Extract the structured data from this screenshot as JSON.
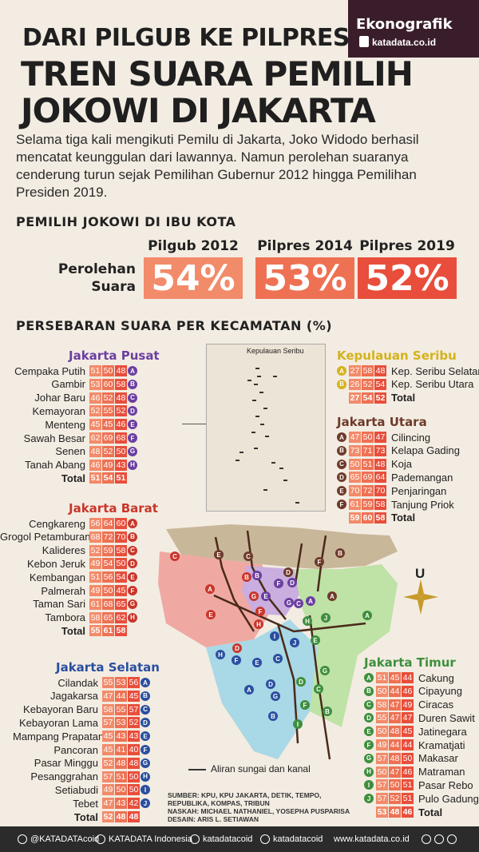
{
  "brand": {
    "title": "Ekonografik",
    "sub": "katadata.co.id"
  },
  "title_small": "DARI PILGUB KE PILPRES",
  "title_big_1": "TREN SUARA PEMILIH",
  "title_big_2": "JOKOWI DI JAKARTA",
  "intro": "Selama tiga kali mengikuti Pemilu di Jakarta, Joko Widodo berhasil mencatat keunggulan dari lawannya. Namun perolehan suaranya cenderung turun sejak Pemilihan Gubernur 2012 hingga Pemilihan Presiden 2019.",
  "section1": "PEMILIH JOKOWI DI IBU KOTA",
  "perolehan_1": "Perolehan",
  "perolehan_2": "Suara",
  "elections": [
    {
      "name": "Pilgub 2012",
      "value": "54%",
      "color": "#f28b6a"
    },
    {
      "name": "Pilpres 2014",
      "value": "53%",
      "color": "#ee7153"
    },
    {
      "name": "Pilpres 2019",
      "value": "52%",
      "color": "#e84e3b"
    }
  ],
  "section2": "PERSEBARAN SUARA PER KECAMATAN (%)",
  "total_label": "Total",
  "regions": {
    "pusat": {
      "name": "Jakarta Pusat",
      "color": "#6b3fa0",
      "rows": [
        {
          "n": "Cempaka Putih",
          "v": [
            "51",
            "50",
            "48"
          ],
          "k": "A"
        },
        {
          "n": "Gambir",
          "v": [
            "53",
            "60",
            "58"
          ],
          "k": "B"
        },
        {
          "n": "Johar Baru",
          "v": [
            "46",
            "52",
            "48"
          ],
          "k": "C"
        },
        {
          "n": "Kemayoran",
          "v": [
            "52",
            "55",
            "52"
          ],
          "k": "D"
        },
        {
          "n": "Menteng",
          "v": [
            "45",
            "45",
            "46"
          ],
          "k": "E"
        },
        {
          "n": "Sawah Besar",
          "v": [
            "62",
            "69",
            "68"
          ],
          "k": "F"
        },
        {
          "n": "Senen",
          "v": [
            "48",
            "52",
            "50"
          ],
          "k": "G"
        },
        {
          "n": "Tanah Abang",
          "v": [
            "46",
            "49",
            "43"
          ],
          "k": "H"
        }
      ],
      "total": [
        "51",
        "54",
        "51"
      ]
    },
    "barat": {
      "name": "Jakarta Barat",
      "color": "#c9362b",
      "rows": [
        {
          "n": "Cengkareng",
          "v": [
            "56",
            "64",
            "60"
          ],
          "k": "A"
        },
        {
          "n": "Grogol Petamburan",
          "v": [
            "68",
            "72",
            "70"
          ],
          "k": "B"
        },
        {
          "n": "Kalideres",
          "v": [
            "52",
            "59",
            "58"
          ],
          "k": "C"
        },
        {
          "n": "Kebon Jeruk",
          "v": [
            "49",
            "54",
            "50"
          ],
          "k": "D"
        },
        {
          "n": "Kembangan",
          "v": [
            "51",
            "56",
            "54"
          ],
          "k": "E"
        },
        {
          "n": "Palmerah",
          "v": [
            "49",
            "50",
            "45"
          ],
          "k": "F"
        },
        {
          "n": "Taman Sari",
          "v": [
            "61",
            "68",
            "65"
          ],
          "k": "G"
        },
        {
          "n": "Tambora",
          "v": [
            "58",
            "65",
            "62"
          ],
          "k": "H"
        }
      ],
      "total": [
        "55",
        "61",
        "58"
      ]
    },
    "selatan": {
      "name": "Jakarta Selatan",
      "color": "#2a4fa0",
      "rows": [
        {
          "n": "Cilandak",
          "v": [
            "55",
            "53",
            "56"
          ],
          "k": "A"
        },
        {
          "n": "Jagakarsa",
          "v": [
            "47",
            "44",
            "45"
          ],
          "k": "B"
        },
        {
          "n": "Kebayoran Baru",
          "v": [
            "58",
            "55",
            "57"
          ],
          "k": "C"
        },
        {
          "n": "Kebayoran Lama",
          "v": [
            "57",
            "53",
            "52"
          ],
          "k": "D"
        },
        {
          "n": "Mampang Prapatan",
          "v": [
            "45",
            "43",
            "43"
          ],
          "k": "E"
        },
        {
          "n": "Pancoran",
          "v": [
            "45",
            "41",
            "40"
          ],
          "k": "F"
        },
        {
          "n": "Pasar Minggu",
          "v": [
            "52",
            "48",
            "48"
          ],
          "k": "G"
        },
        {
          "n": "Pesanggrahan",
          "v": [
            "57",
            "51",
            "50"
          ],
          "k": "H"
        },
        {
          "n": "Setiabudi",
          "v": [
            "49",
            "50",
            "50"
          ],
          "k": "I"
        },
        {
          "n": "Tebet",
          "v": [
            "47",
            "43",
            "42"
          ],
          "k": "J"
        }
      ],
      "total": [
        "52",
        "48",
        "48"
      ]
    },
    "seribu": {
      "name": "Kepulauan Seribu",
      "color": "#d4b21a",
      "rows": [
        {
          "n": "Kep. Seribu Selatan",
          "v": [
            "27",
            "58",
            "48"
          ],
          "k": "A"
        },
        {
          "n": "Kep. Seribu Utara",
          "v": [
            "26",
            "52",
            "54"
          ],
          "k": "B"
        }
      ],
      "total": [
        "27",
        "54",
        "52"
      ]
    },
    "utara": {
      "name": "Jakarta Utara",
      "color": "#6e3a2a",
      "rows": [
        {
          "n": "Cilincing",
          "v": [
            "47",
            "50",
            "47"
          ],
          "k": "A"
        },
        {
          "n": "Kelapa Gading",
          "v": [
            "73",
            "71",
            "73"
          ],
          "k": "B"
        },
        {
          "n": "Koja",
          "v": [
            "50",
            "51",
            "48"
          ],
          "k": "C"
        },
        {
          "n": "Pademangan",
          "v": [
            "65",
            "69",
            "64"
          ],
          "k": "D"
        },
        {
          "n": "Penjaringan",
          "v": [
            "70",
            "72",
            "70"
          ],
          "k": "E"
        },
        {
          "n": "Tanjung Priok",
          "v": [
            "61",
            "59",
            "58"
          ],
          "k": "F"
        }
      ],
      "total": [
        "59",
        "60",
        "58"
      ]
    },
    "timur": {
      "name": "Jakarta Timur",
      "color": "#3e8f3e",
      "rows": [
        {
          "n": "Cakung",
          "v": [
            "51",
            "45",
            "44"
          ],
          "k": "A"
        },
        {
          "n": "Cipayung",
          "v": [
            "50",
            "44",
            "46"
          ],
          "k": "B"
        },
        {
          "n": "Ciracas",
          "v": [
            "58",
            "47",
            "49"
          ],
          "k": "C"
        },
        {
          "n": "Duren Sawit",
          "v": [
            "55",
            "47",
            "47"
          ],
          "k": "D"
        },
        {
          "n": "Jatinegara",
          "v": [
            "50",
            "48",
            "45"
          ],
          "k": "E"
        },
        {
          "n": "Kramatjati",
          "v": [
            "49",
            "44",
            "44"
          ],
          "k": "F"
        },
        {
          "n": "Makasar",
          "v": [
            "57",
            "48",
            "50"
          ],
          "k": "G"
        },
        {
          "n": "Matraman",
          "v": [
            "50",
            "47",
            "46"
          ],
          "k": "H"
        },
        {
          "n": "Pasar Rebo",
          "v": [
            "57",
            "50",
            "51"
          ],
          "k": "I"
        },
        {
          "n": "Pulo Gadung",
          "v": [
            "57",
            "52",
            "51"
          ],
          "k": "J"
        }
      ],
      "total": [
        "53",
        "48",
        "46"
      ]
    }
  },
  "map_inset_label": "Kepulauan Seribu",
  "compass_label": "U",
  "legend_river": "Aliran sungai dan kanal",
  "sources": [
    "SUMBER: KPU, KPU JAKARTA, DETIK, TEMPO,",
    "REPUBLIKA, KOMPAS, TRIBUN",
    "NASKAH: MICHAEL NATHANIEL, YOSEPHA PUSPARISA",
    "DESAIN: ARIS L. SETIAWAN"
  ],
  "footer": [
    "@KATADATAcoid",
    "KATADATA Indonesia",
    "katadatacoid",
    "katadatacoid",
    "www.katadata.co.id"
  ]
}
